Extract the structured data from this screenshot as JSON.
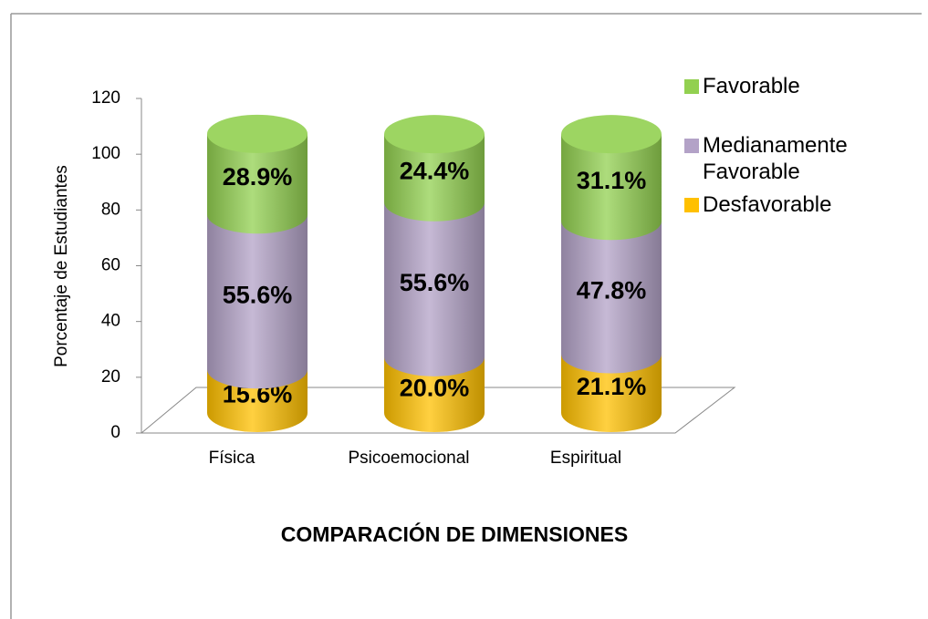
{
  "chart_data": {
    "type": "bar3d-cylinder-stacked",
    "title": "COMPARACIÓN DE DIMENSIONES",
    "y_label": "Porcentaje de Estudiantes",
    "categories": [
      "Física",
      "Psicoemocional",
      "Espiritual"
    ],
    "series": [
      {
        "name": "Desfavorable",
        "color": "#ffc000",
        "values": [
          15.6,
          20.0,
          21.1
        ],
        "value_labels": [
          "15.6%",
          "20.0%",
          "21.1%"
        ]
      },
      {
        "name": "Medianamente Favorable",
        "color": "#b3a2c7",
        "values": [
          55.6,
          55.6,
          47.8
        ],
        "value_labels": [
          "55.6%",
          "55.6%",
          "47.8%"
        ]
      },
      {
        "name": "Favorable",
        "color": "#92d050",
        "values": [
          28.9,
          24.4,
          31.1
        ],
        "value_labels": [
          "28.9%",
          "24.4%",
          "31.1%"
        ]
      }
    ],
    "ylim": [
      0,
      120
    ],
    "yticks": [
      0,
      20,
      40,
      60,
      80,
      100,
      120
    ],
    "grid": false,
    "legend": "right"
  }
}
